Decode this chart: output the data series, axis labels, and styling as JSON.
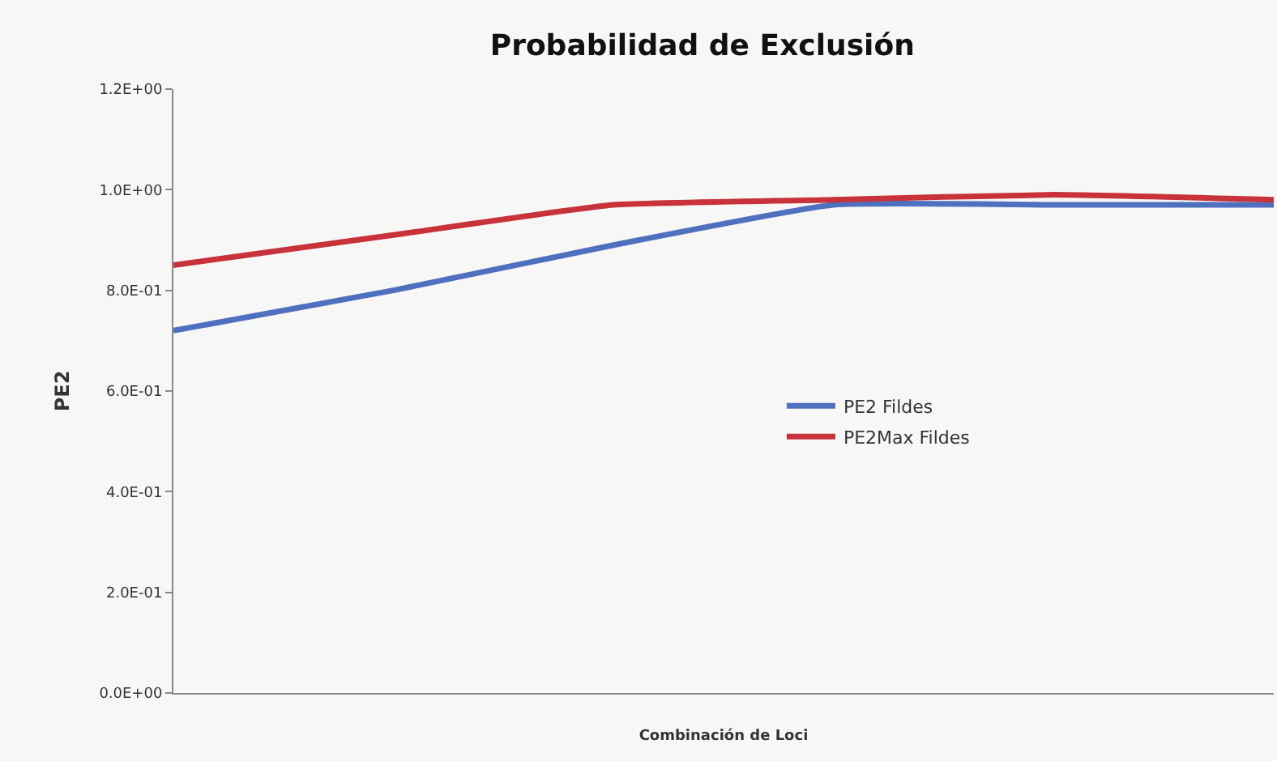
{
  "chart_data": {
    "type": "line",
    "title": "Probabilidad de Exclusión",
    "xlabel": "Combinación de Loci",
    "ylabel": "PE2",
    "categories": [
      null,
      null,
      null,
      null,
      null,
      null
    ],
    "series": [
      {
        "name": "PE2 Fildes",
        "color": "#4f6fbf",
        "values": [
          0.72,
          0.8,
          0.89,
          0.97,
          0.97,
          0.97
        ]
      },
      {
        "name": "PE2Max Fildes",
        "color": "#c8323a",
        "values": [
          0.85,
          0.91,
          0.97,
          0.98,
          0.99,
          0.98
        ]
      }
    ],
    "ylim": [
      0,
      1.2
    ],
    "yticks": [
      {
        "value": 0,
        "label": "0.0E+00"
      },
      {
        "value": 0.2,
        "label": "2.0E-01"
      },
      {
        "value": 0.4,
        "label": "4.0E-01"
      },
      {
        "value": 0.6,
        "label": "6.0E-01"
      },
      {
        "value": 0.8,
        "label": "8.0E-01"
      },
      {
        "value": 1.0,
        "label": "1.0E+00"
      },
      {
        "value": 1.2,
        "label": "1.2E+00"
      }
    ],
    "grid": false,
    "legend": "right",
    "tick_labels": "y",
    "marker": "none",
    "line_style": "solid"
  }
}
